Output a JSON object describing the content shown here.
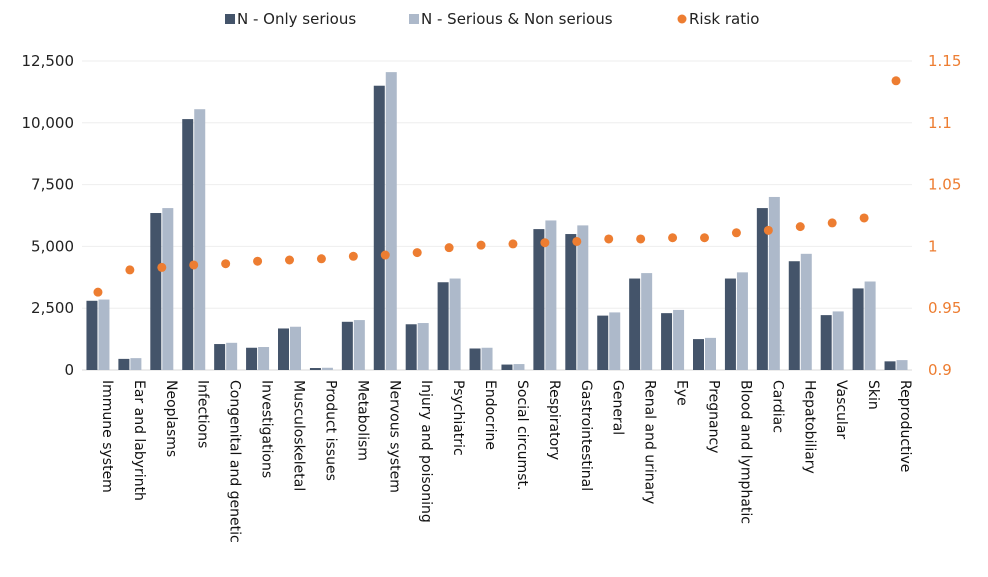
{
  "chart_data": {
    "type": "bar",
    "legend_position": "top",
    "grid": true,
    "categories": [
      "Immune system",
      "Ear and labyrinth",
      "Neoplasms",
      "Infections",
      "Congenital and genetic",
      "Investigations",
      "Musculoskeletal",
      "Product issues",
      "Metabolism",
      "Nervous system",
      "Injury and poisoning",
      "Psychiatric",
      "Endocrine",
      "Social circumst.",
      "Respiratory",
      "Gastrointestinal",
      "General",
      "Renal and urinary",
      "Eye",
      "Pregnancy",
      "Blood and lymphatic",
      "Cardiac",
      "Hepatobiliary",
      "Vascular",
      "Skin",
      "Reproductive"
    ],
    "series": [
      {
        "name": "N - Only serious",
        "type": "bar",
        "axis": "left",
        "color": "#44546A",
        "values": [
          2800,
          450,
          6350,
          10150,
          1050,
          900,
          1680,
          80,
          1950,
          11500,
          1850,
          3550,
          870,
          220,
          5700,
          5500,
          2200,
          3700,
          2300,
          1250,
          3700,
          6550,
          4400,
          2220,
          3300,
          350
        ]
      },
      {
        "name": "N - Serious & Non serious",
        "type": "bar",
        "axis": "left",
        "color": "#ADB9CA",
        "values": [
          2850,
          480,
          6550,
          10550,
          1100,
          930,
          1750,
          90,
          2020,
          12050,
          1900,
          3700,
          900,
          240,
          6050,
          5850,
          2330,
          3920,
          2430,
          1300,
          3950,
          7000,
          4700,
          2370,
          3580,
          400
        ]
      },
      {
        "name": "Risk ratio",
        "type": "scatter",
        "axis": "right",
        "color": "#ED7D31",
        "values": [
          0.963,
          0.981,
          0.983,
          0.985,
          0.986,
          0.988,
          0.989,
          0.99,
          0.992,
          0.993,
          0.995,
          0.999,
          1.001,
          1.002,
          1.003,
          1.004,
          1.006,
          1.006,
          1.007,
          1.007,
          1.011,
          1.013,
          1.016,
          1.019,
          1.023,
          1.134
        ]
      }
    ],
    "y_left": {
      "lim": [
        0,
        12500
      ],
      "ticks": [
        0,
        2500,
        5000,
        7500,
        10000,
        12500
      ],
      "tick_labels": [
        "0",
        "2,500",
        "5,000",
        "7,500",
        "10,000",
        "12,500"
      ]
    },
    "y_right": {
      "lim": [
        0.9,
        1.15
      ],
      "ticks": [
        0.9,
        0.95,
        1.0,
        1.05,
        1.1,
        1.15
      ],
      "tick_labels": [
        "0.9",
        "0.95",
        "1",
        "1.05",
        "1.1",
        "1.15"
      ]
    }
  }
}
